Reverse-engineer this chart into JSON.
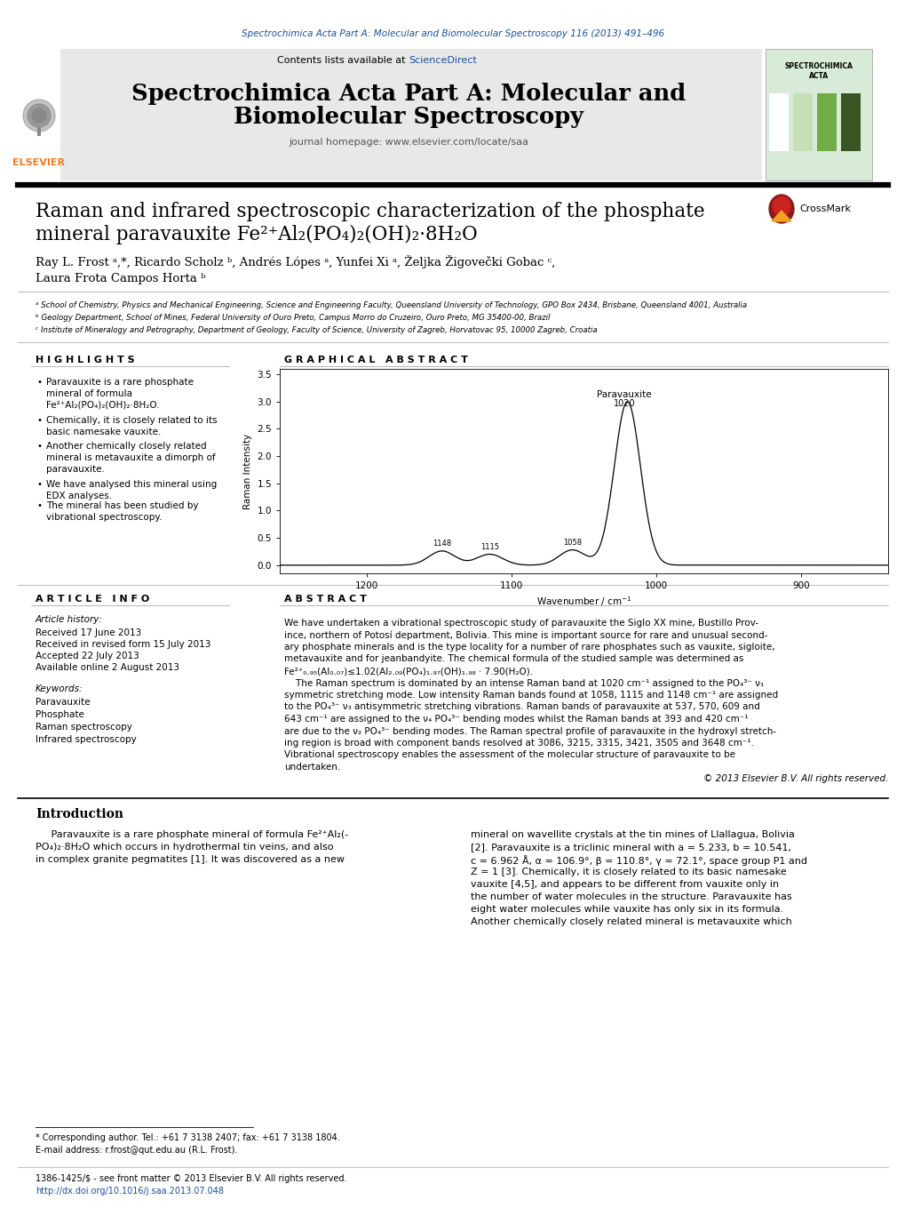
{
  "page_width": 10.2,
  "page_height": 13.59,
  "background_color": "#ffffff",
  "header_journal_line": "Spectrochimica Acta Part A: Molecular and Biomolecular Spectroscopy 116 (2013) 491–496",
  "header_journal_color": "#1a4fa0",
  "journal_title_line1": "Spectrochimica Acta Part A: Molecular and",
  "journal_title_line2": "Biomolecular Spectroscopy",
  "journal_homepage": "journal homepage: www.elsevier.com/locate/saa",
  "header_bg_color": "#e8e8e8",
  "article_title_line1": "Raman and infrared spectroscopic characterization of the phosphate",
  "article_title_line2": "mineral paravauxite Fe²⁺Al₂(PO₄)₂(OH)₂·8H₂O",
  "authors": "Ray L. Frost ᵃ,*, Ricardo Scholz ᵇ, Andrés Lópes ᵃ, Yunfei Xi ᵃ, Željka Žigovečki Gobac ᶜ,",
  "authors_line2": "Laura Frota Campos Horta ᵇ",
  "affil_a": "ᵃ School of Chemistry, Physics and Mechanical Engineering, Science and Engineering Faculty, Queensland University of Technology, GPO Box 2434, Brisbane, Queensland 4001, Australia",
  "affil_b": "ᵇ Geology Department, School of Mines, Federal University of Ouro Preto, Campus Morro do Cruzeiro, Ouro Preto, MG 35400-00, Brazil",
  "affil_c": "ᶜ Institute of Mineralogy and Petrography, Department of Geology, Faculty of Science, University of Zagreb, Horvatovac 95, 10000 Zagreb, Croatia",
  "highlights_title": "H I G H L I G H T S",
  "graphical_abstract_title": "G R A P H I C A L   A B S T R A C T",
  "article_info_title": "A R T I C L E   I N F O",
  "article_history": "Article history:",
  "received": "Received 17 June 2013",
  "revised": "Received in revised form 15 July 2013",
  "accepted": "Accepted 22 July 2013",
  "available": "Available online 2 August 2013",
  "keywords_title": "Keywords:",
  "keywords": [
    "Paravauxite",
    "Phosphate",
    "Raman spectroscopy",
    "Infrared spectroscopy"
  ],
  "abstract_title": "A B S T R A C T",
  "copyright": "© 2013 Elsevier B.V. All rights reserved.",
  "intro_title": "Introduction",
  "footnote_star": "* Corresponding author. Tel.: +61 7 3138 2407; fax: +61 7 3138 1804.",
  "footnote_email": "E-mail address: r.frost@qut.edu.au (R.L. Frost).",
  "footer_issn": "1386-1425/$ - see front matter © 2013 Elsevier B.V. All rights reserved.",
  "footer_doi": "http://dx.doi.org/10.1016/j.saa.2013.07.048"
}
